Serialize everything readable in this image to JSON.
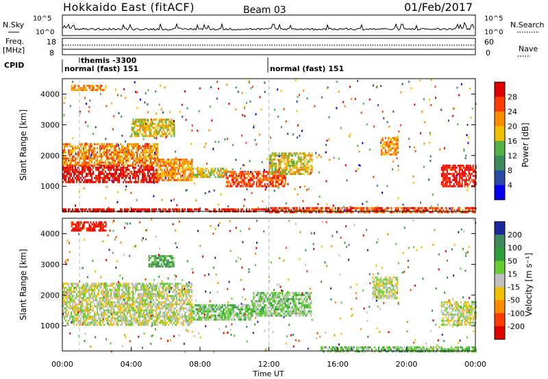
{
  "header": {
    "radar": "Hokkaido East (fitACF)",
    "beam": "Beam 03",
    "date": "01/Feb/2017"
  },
  "status_panels": {
    "nsky_label": "N.Sky",
    "nsky_ticks": [
      "10^5",
      "10^0"
    ],
    "nsearch_label": "N.Search",
    "freq_label_1": "Freq.",
    "freq_label_2": "[MHz]",
    "freq_ticks": [
      "18",
      "8"
    ],
    "nave_ticks": [
      "60",
      "0"
    ],
    "nave_label": "Nave",
    "cpid_label": "CPID",
    "cpid_entries": [
      "themis -3300",
      "normal (fast) 151",
      "normal (fast) 151"
    ]
  },
  "chart_data": [
    {
      "type": "heatmap",
      "name": "power",
      "ylabel": "Slant Range [km]",
      "yticks": [
        "1000",
        "2000",
        "3000",
        "4000"
      ],
      "xticks": [
        "00:00",
        "04:00",
        "08:00",
        "12:00",
        "16:00",
        "20:00",
        "00:00"
      ],
      "colorbar_label": "Power [dB]",
      "colorbar_ticks": [
        "4",
        "8",
        "12",
        "16",
        "20",
        "24",
        "28"
      ],
      "colors": [
        "#0000ee",
        "#2a4aa6",
        "#3c8a58",
        "#55b04a",
        "#f0c000",
        "#ff8c00",
        "#ff3c00",
        "#e00000"
      ],
      "bands": [
        {
          "t0": 0.0,
          "t1": 5.5,
          "r0": 1100,
          "r1": 1700,
          "level": 7
        },
        {
          "t0": 0.0,
          "t1": 5.5,
          "r0": 1700,
          "r1": 2400,
          "level": 5
        },
        {
          "t0": 5.5,
          "t1": 7.5,
          "r0": 1200,
          "r1": 1900,
          "level": 5
        },
        {
          "t0": 7.5,
          "t1": 9.5,
          "r0": 1300,
          "r1": 1600,
          "level": 4
        },
        {
          "t0": 9.5,
          "t1": 13.0,
          "r0": 1000,
          "r1": 1500,
          "level": 6
        },
        {
          "t0": 12.0,
          "t1": 14.5,
          "r0": 1400,
          "r1": 2100,
          "level": 4
        },
        {
          "t0": 4.0,
          "t1": 6.5,
          "r0": 2600,
          "r1": 3200,
          "level": 4
        },
        {
          "t0": 12.0,
          "t1": 24.0,
          "r0": 180,
          "r1": 320,
          "level": 6
        },
        {
          "t0": 0.0,
          "t1": 12.0,
          "r0": 180,
          "r1": 280,
          "level": 7
        },
        {
          "t0": 22.0,
          "t1": 24.0,
          "r0": 1000,
          "r1": 1700,
          "level": 7
        },
        {
          "t0": 0.5,
          "t1": 2.5,
          "r0": 4100,
          "r1": 4300,
          "level": 5
        },
        {
          "t0": 18.5,
          "t1": 19.5,
          "r0": 2000,
          "r1": 2600,
          "level": 5
        }
      ]
    },
    {
      "type": "heatmap",
      "name": "velocity",
      "ylabel": "Slant Range [km]",
      "yticks": [
        "1000",
        "2000",
        "3000",
        "4000"
      ],
      "xticks": [
        "00:00",
        "04:00",
        "08:00",
        "12:00",
        "16:00",
        "20:00",
        "00:00"
      ],
      "xlabel": "Time UT",
      "colorbar_label": "Velocity [m s⁻¹]",
      "colorbar_ticks": [
        "200",
        "100",
        "50",
        "15",
        "-15",
        "-50",
        "-100",
        "-200"
      ],
      "colors": [
        "#1a2a9e",
        "#3c8a58",
        "#2e9e3a",
        "#66cc33",
        "#c0c0c0",
        "#f0c000",
        "#ff8c00",
        "#ff3c00",
        "#e00000"
      ],
      "bands": [
        {
          "t0": 0.0,
          "t1": 7.5,
          "r0": 1000,
          "r1": 2400,
          "level": 4
        },
        {
          "t0": 7.5,
          "t1": 11.0,
          "r0": 1200,
          "r1": 1700,
          "level": 3
        },
        {
          "t0": 11.0,
          "t1": 14.5,
          "r0": 1300,
          "r1": 2100,
          "level": 3
        },
        {
          "t0": 0.5,
          "t1": 2.5,
          "r0": 4100,
          "r1": 4400,
          "level": 8
        },
        {
          "t0": 5.0,
          "t1": 6.5,
          "r0": 2900,
          "r1": 3300,
          "level": 2
        },
        {
          "t0": 22.0,
          "t1": 24.0,
          "r0": 1000,
          "r1": 1800,
          "level": 4
        },
        {
          "t0": 15.0,
          "t1": 24.0,
          "r0": 180,
          "r1": 330,
          "level": 3
        },
        {
          "t0": 18.0,
          "t1": 19.5,
          "r0": 1900,
          "r1": 2600,
          "level": 4
        }
      ]
    }
  ]
}
